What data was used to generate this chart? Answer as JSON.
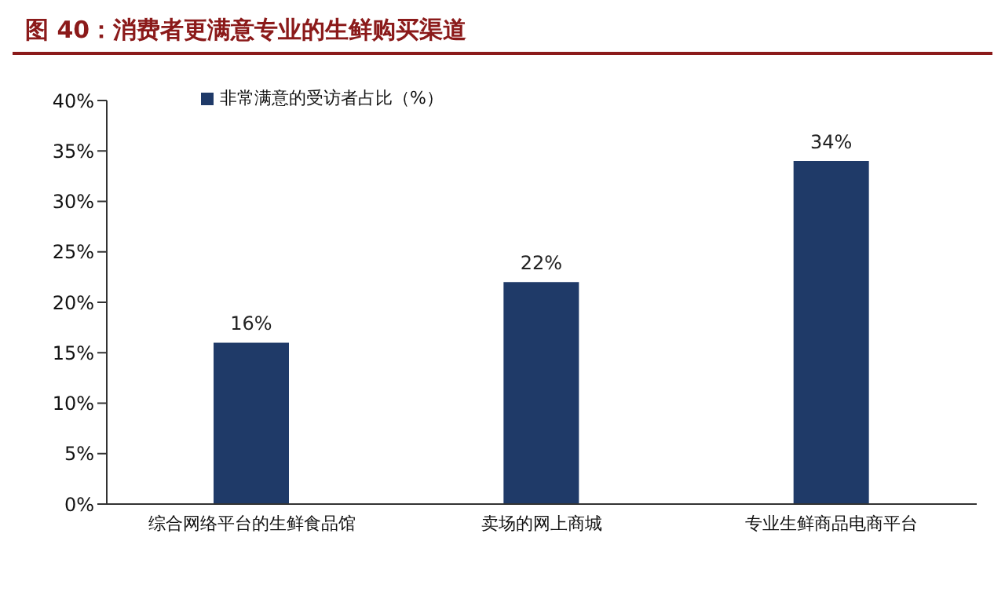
{
  "chart_data": {
    "type": "bar",
    "title": "图 40：消费者更满意专业的生鲜购买渠道",
    "categories": [
      "综合网络平台的生鲜食品馆",
      "卖场的网上商城",
      "专业生鲜商品电商平台"
    ],
    "series": [
      {
        "name": "非常满意的受访者占比（%）",
        "color": "#1f3a68",
        "values": [
          16,
          22,
          34
        ],
        "value_labels": [
          "16%",
          "22%",
          "34%"
        ]
      }
    ],
    "ylim": [
      0,
      40
    ],
    "yticks": [
      {
        "value": 0,
        "label": "0%"
      },
      {
        "value": 5,
        "label": "5%"
      },
      {
        "value": 10,
        "label": "10%"
      },
      {
        "value": 15,
        "label": "15%"
      },
      {
        "value": 20,
        "label": "20%"
      },
      {
        "value": 25,
        "label": "25%"
      },
      {
        "value": 30,
        "label": "30%"
      },
      {
        "value": 35,
        "label": "35%"
      },
      {
        "value": 40,
        "label": "40%"
      }
    ],
    "grid": false,
    "legend": "top left"
  }
}
